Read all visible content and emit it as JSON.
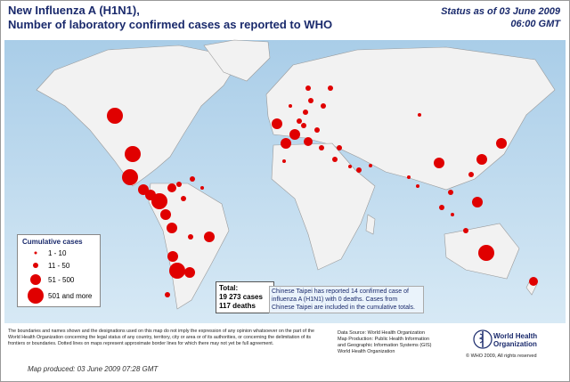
{
  "header": {
    "title_lines": [
      "New Influenza A (H1N1),",
      "Number of  laboratory confirmed cases as reported to WHO"
    ],
    "status_lines": [
      "Status as of 03 June 2009",
      "06:00 GMT"
    ]
  },
  "legend": {
    "title": "Cumulative cases",
    "items": [
      "1 - 10",
      "11 - 50",
      "51 - 500",
      "501 and more"
    ]
  },
  "total": {
    "label": "Total:",
    "cases": "19 273 cases",
    "deaths": "117 deaths"
  },
  "note": "Chinese Taipei has reported 14 confirmed case of influenza A (H1N1) with 0 deaths. Cases from Chinese Taipei are included in the cumulative totals.",
  "disclaimer": "The boundaries and names shown and the designations used on this map do not imply the expression of any opinion whatsoever on the part of the World Health Organization concerning the legal status of any country, territory, city or area or of its authorities, or concerning the delimitation of its frontiers or boundaries. Dotted lines on maps represent approximate border lines for which there may not yet be full agreement.",
  "source_lines": [
    "Data Source: World Health Organization",
    "Map Production: Public Health Information",
    "and Geographic Information Systems (GIS)",
    "World Health Organization"
  ],
  "logo_lines": [
    "World Health",
    "Organization"
  ],
  "copyright": "© WHO 2009, All rights reserved",
  "map_produced": "Map produced: 03 June 2009 07:28 GMT"
}
